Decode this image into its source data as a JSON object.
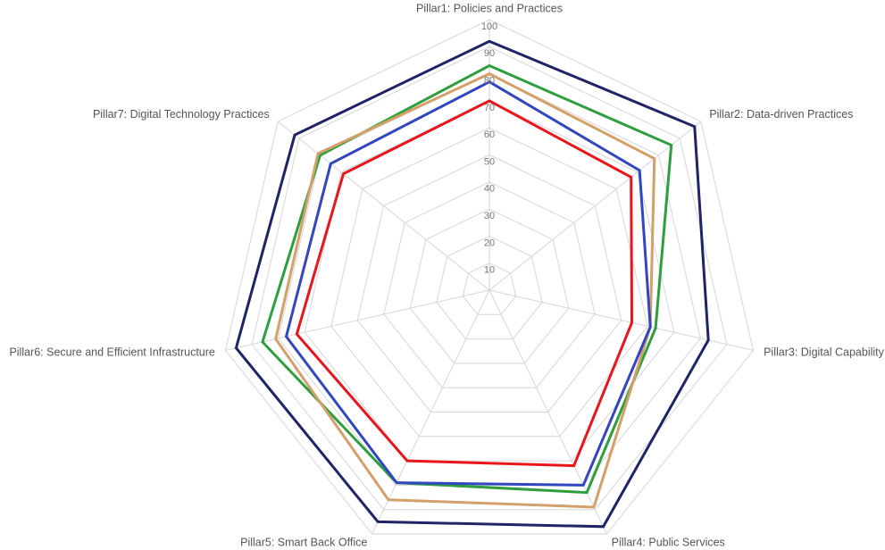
{
  "chart_data": {
    "type": "radar",
    "categories": [
      "Pillar1: Policies and Practices",
      "Pillar2: Data-driven Practices",
      "Pillar3: Digital Capability",
      "Pillar4: Public Services",
      "Pillar5: Smart Back Office",
      "Pillar6: Secure and Efficient Infrastructure",
      "Pillar7: Digital Technology Practices"
    ],
    "rlim": [
      0,
      100
    ],
    "rticks": [
      10,
      20,
      30,
      40,
      50,
      60,
      70,
      80,
      90,
      100
    ],
    "grid": true,
    "series": [
      {
        "color": "#1f2466",
        "values": [
          92,
          97,
          83,
          97,
          95,
          96,
          92
        ]
      },
      {
        "color": "#2e9e3e",
        "values": [
          83,
          86,
          63,
          83,
          79,
          86,
          80
        ]
      },
      {
        "color": "#d4a06a",
        "values": [
          80,
          78,
          61,
          89,
          86,
          81,
          81
        ]
      },
      {
        "color": "#3246c0",
        "values": [
          77,
          71,
          61,
          80,
          79,
          77,
          75
        ]
      },
      {
        "color": "#e8161b",
        "values": [
          70,
          67,
          54,
          72,
          70,
          73,
          69
        ]
      }
    ]
  }
}
